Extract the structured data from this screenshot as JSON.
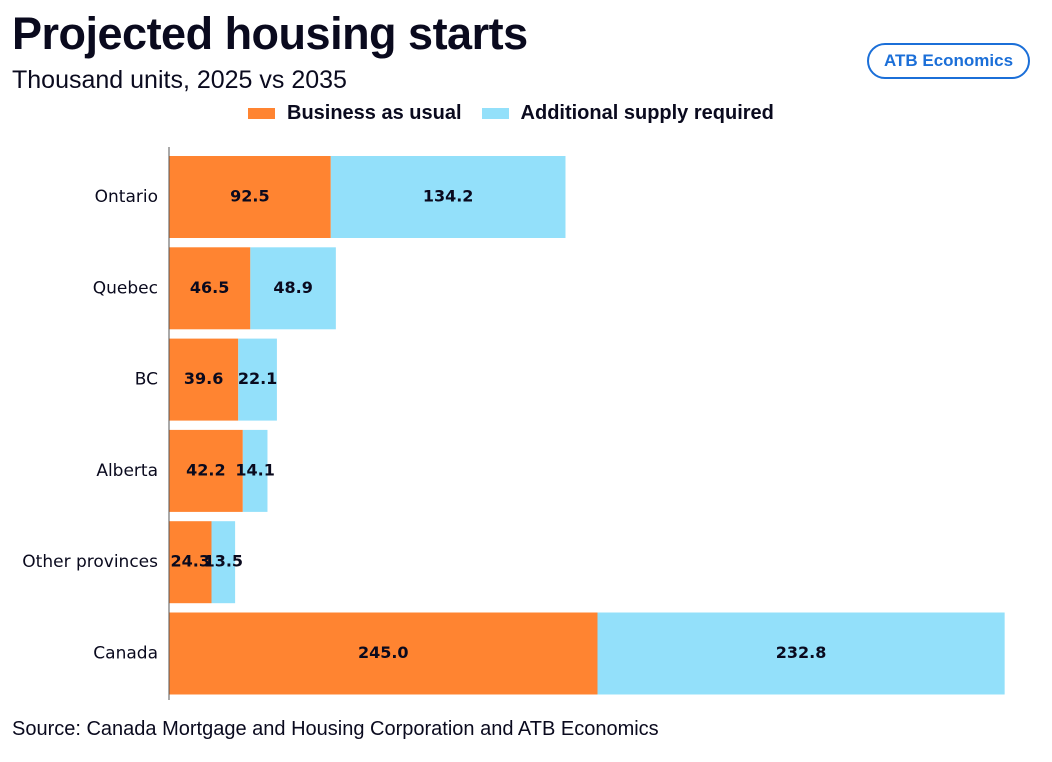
{
  "header": {
    "title": "Projected housing starts",
    "subtitle": "Thousand units, 2025 vs 2035",
    "brand": "ATB Economics"
  },
  "footer": {
    "source": "Source: Canada Mortgage and Housing Corporation and ATB Economics"
  },
  "colors": {
    "business_as_usual": "#ff8431",
    "additional_supply": "#93e0fa",
    "brand": "#1b6fd8",
    "axis": "#555555"
  },
  "chart_data": {
    "type": "bar",
    "orientation": "horizontal",
    "stacked": true,
    "title": "Projected housing starts",
    "subtitle": "Thousand units, 2025 vs 2035",
    "categories": [
      "Ontario",
      "Quebec",
      "BC",
      "Alberta",
      "Other provinces",
      "Canada"
    ],
    "series": [
      {
        "name": "Business as usual",
        "values": [
          92.5,
          46.5,
          39.6,
          42.2,
          24.3,
          245.0
        ]
      },
      {
        "name": "Additional supply required",
        "values": [
          134.2,
          48.9,
          22.1,
          14.1,
          13.5,
          232.8
        ]
      }
    ],
    "data_labels": [
      [
        "92.5",
        "46.5",
        "39.6",
        "42.2",
        "24.3",
        "245.0"
      ],
      [
        "134.2",
        "48.9",
        "22.1",
        "14.1",
        "13.5",
        "232.8"
      ]
    ],
    "xlim": [
      0,
      478
    ],
    "xlabel": "",
    "ylabel": "",
    "grid": false,
    "legend_position": "top"
  }
}
